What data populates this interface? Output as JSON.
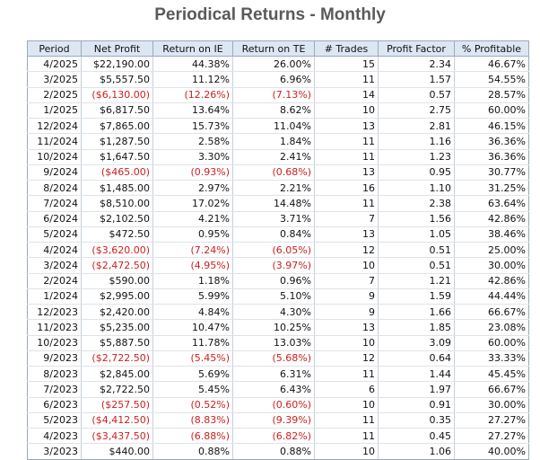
{
  "title": "Periodical Returns - Monthly",
  "columns": [
    "Period",
    "Net Profit",
    "Return on IE",
    "Return on TE",
    "# Trades",
    "Profit Factor",
    "% Profitable"
  ],
  "colors": {
    "negative": "#cc1f1f",
    "header_bg": "#dde7f3"
  },
  "rows": [
    [
      "4/2025",
      "$22,190.00",
      "44.38%",
      "26.00%",
      "15",
      "2.34",
      "46.67%"
    ],
    [
      "3/2025",
      "$5,557.50",
      "11.12%",
      "6.96%",
      "11",
      "1.57",
      "54.55%"
    ],
    [
      "2/2025",
      "($6,130.00)",
      "(12.26%)",
      "(7.13%)",
      "14",
      "0.57",
      "28.57%"
    ],
    [
      "1/2025",
      "$6,817.50",
      "13.64%",
      "8.62%",
      "10",
      "2.75",
      "60.00%"
    ],
    [
      "12/2024",
      "$7,865.00",
      "15.73%",
      "11.04%",
      "13",
      "2.81",
      "46.15%"
    ],
    [
      "11/2024",
      "$1,287.50",
      "2.58%",
      "1.84%",
      "11",
      "1.16",
      "36.36%"
    ],
    [
      "10/2024",
      "$1,647.50",
      "3.30%",
      "2.41%",
      "11",
      "1.23",
      "36.36%"
    ],
    [
      "9/2024",
      "($465.00)",
      "(0.93%)",
      "(0.68%)",
      "13",
      "0.95",
      "30.77%"
    ],
    [
      "8/2024",
      "$1,485.00",
      "2.97%",
      "2.21%",
      "16",
      "1.10",
      "31.25%"
    ],
    [
      "7/2024",
      "$8,510.00",
      "17.02%",
      "14.48%",
      "11",
      "2.38",
      "63.64%"
    ],
    [
      "6/2024",
      "$2,102.50",
      "4.21%",
      "3.71%",
      "7",
      "1.56",
      "42.86%"
    ],
    [
      "5/2024",
      "$472.50",
      "0.95%",
      "0.84%",
      "13",
      "1.05",
      "38.46%"
    ],
    [
      "4/2024",
      "($3,620.00)",
      "(7.24%)",
      "(6.05%)",
      "12",
      "0.51",
      "25.00%"
    ],
    [
      "3/2024",
      "($2,472.50)",
      "(4.95%)",
      "(3.97%)",
      "10",
      "0.51",
      "30.00%"
    ],
    [
      "2/2024",
      "$590.00",
      "1.18%",
      "0.96%",
      "7",
      "1.21",
      "42.86%"
    ],
    [
      "1/2024",
      "$2,995.00",
      "5.99%",
      "5.10%",
      "9",
      "1.59",
      "44.44%"
    ],
    [
      "12/2023",
      "$2,420.00",
      "4.84%",
      "4.30%",
      "9",
      "1.66",
      "66.67%"
    ],
    [
      "11/2023",
      "$5,235.00",
      "10.47%",
      "10.25%",
      "13",
      "1.85",
      "23.08%"
    ],
    [
      "10/2023",
      "$5,887.50",
      "11.78%",
      "13.03%",
      "10",
      "3.09",
      "60.00%"
    ],
    [
      "9/2023",
      "($2,722.50)",
      "(5.45%)",
      "(5.68%)",
      "12",
      "0.64",
      "33.33%"
    ],
    [
      "8/2023",
      "$2,845.00",
      "5.69%",
      "6.31%",
      "11",
      "1.44",
      "45.45%"
    ],
    [
      "7/2023",
      "$2,722.50",
      "5.45%",
      "6.43%",
      "6",
      "1.97",
      "66.67%"
    ],
    [
      "6/2023",
      "($257.50)",
      "(0.52%)",
      "(0.60%)",
      "10",
      "0.91",
      "30.00%"
    ],
    [
      "5/2023",
      "($4,412.50)",
      "(8.83%)",
      "(9.39%)",
      "11",
      "0.35",
      "27.27%"
    ],
    [
      "4/2023",
      "($3,437.50)",
      "(6.88%)",
      "(6.82%)",
      "11",
      "0.45",
      "27.27%"
    ],
    [
      "3/2023",
      "$440.00",
      "0.88%",
      "0.88%",
      "10",
      "1.06",
      "40.00%"
    ]
  ]
}
